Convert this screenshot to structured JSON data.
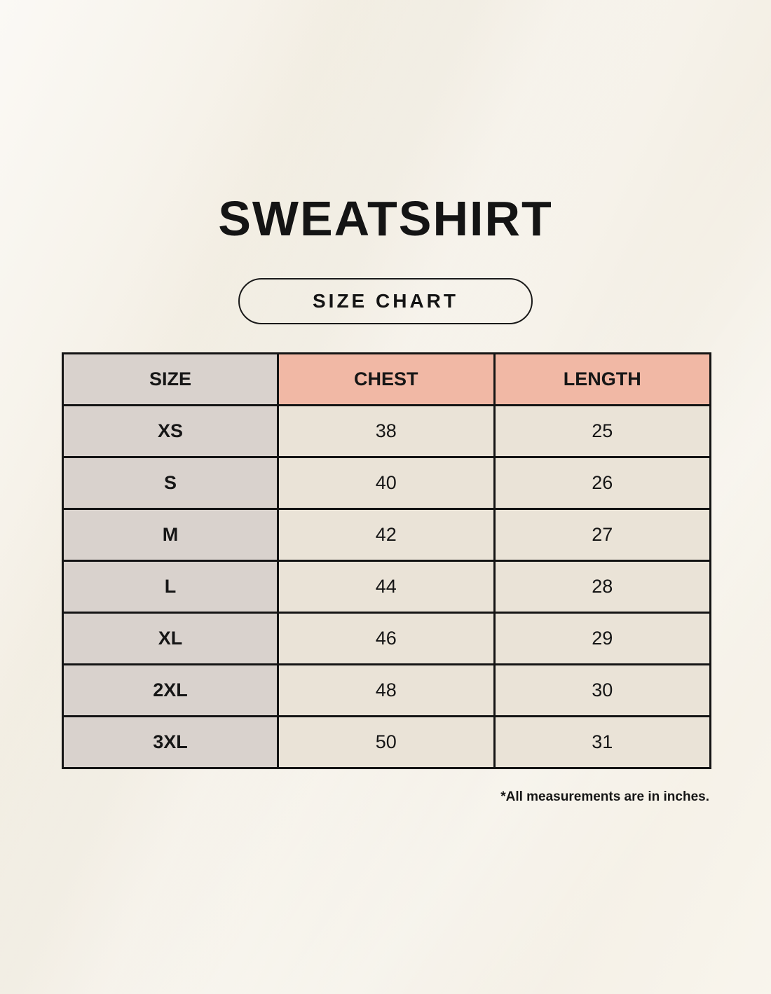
{
  "page": {
    "title": "SWEATSHIRT",
    "badge_label": "SIZE CHART",
    "footnote": "*All measurements are in inches."
  },
  "colors": {
    "background": "#f6f2e9",
    "size_column": "#d9d2cd",
    "header_accent": "#f1b8a5",
    "data_cell": "#eae3d7",
    "border": "#141414",
    "text": "#161616"
  },
  "chart_data": {
    "type": "table",
    "title": "SWEATSHIRT — SIZE CHART",
    "columns": [
      "SIZE",
      "CHEST",
      "LENGTH"
    ],
    "units": "inches",
    "rows": [
      {
        "size": "XS",
        "chest": 38,
        "length": 25
      },
      {
        "size": "S",
        "chest": 40,
        "length": 26
      },
      {
        "size": "M",
        "chest": 42,
        "length": 27
      },
      {
        "size": "L",
        "chest": 44,
        "length": 28
      },
      {
        "size": "XL",
        "chest": 46,
        "length": 29
      },
      {
        "size": "2XL",
        "chest": 48,
        "length": 30
      },
      {
        "size": "3XL",
        "chest": 50,
        "length": 31
      }
    ]
  }
}
